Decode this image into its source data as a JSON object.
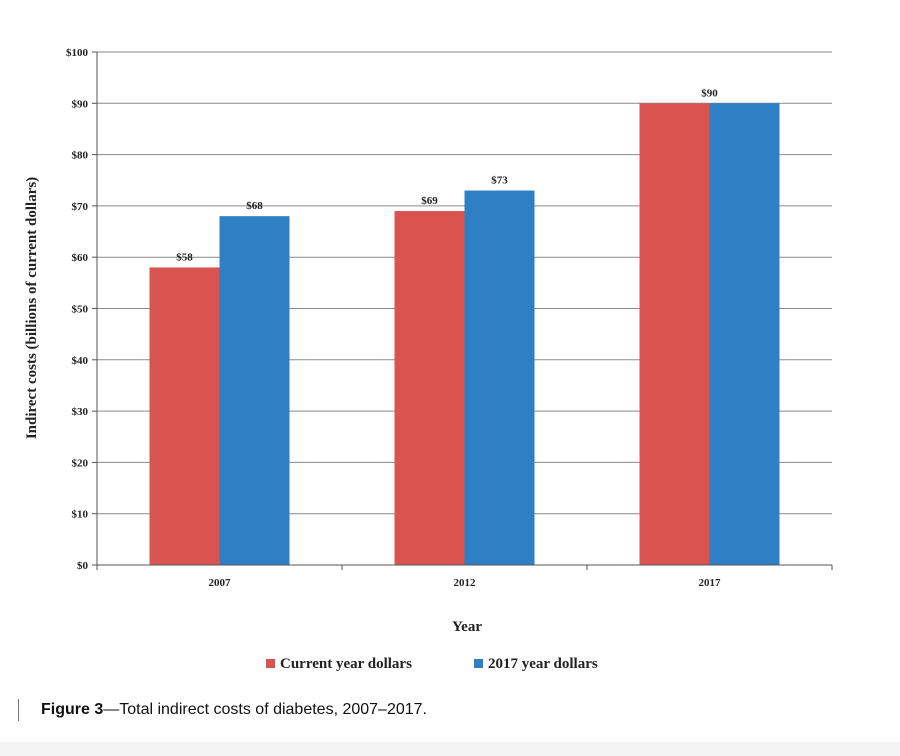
{
  "chart_data": {
    "type": "bar",
    "categories": [
      "2007",
      "2012",
      "2017"
    ],
    "series": [
      {
        "name": "Current year dollars",
        "color": "#d9534f",
        "values": [
          58,
          69,
          90
        ],
        "labels": [
          "$58",
          "$69",
          "$90"
        ]
      },
      {
        "name": "2017 year dollars",
        "color": "#2e7fc4",
        "values": [
          68,
          73,
          90
        ],
        "labels": [
          "$68",
          "$73",
          ""
        ]
      }
    ],
    "title": "",
    "xlabel": "Year",
    "ylabel": "Indirect costs (billions of current dollars)",
    "ylim": [
      0,
      100
    ],
    "yticks": [
      0,
      10,
      20,
      30,
      40,
      50,
      60,
      70,
      80,
      90,
      100
    ],
    "ytick_labels": [
      "$0",
      "$10",
      "$20",
      "$30",
      "$40",
      "$50",
      "$60",
      "$70",
      "$80",
      "$90",
      "$100"
    ],
    "grid": true,
    "legend": "bottom"
  },
  "caption": {
    "label": "Figure 3",
    "text": "—Total indirect costs of diabetes, 2007–2017."
  }
}
